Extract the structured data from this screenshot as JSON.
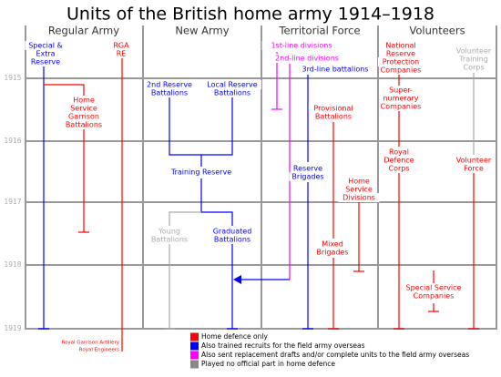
{
  "title": "Units of the British home army 1914–1918",
  "columns": [
    "Regular Army",
    "New Army",
    "Territorial Force",
    "Volunteers"
  ],
  "years": [
    "1915",
    "1916",
    "1917",
    "1918",
    "1919"
  ],
  "nodes": [
    {
      "lines": [
        "Special &",
        "Extra",
        "Reserve"
      ]
    },
    {
      "lines": [
        "RGA",
        "RE"
      ]
    },
    {
      "lines": [
        "Home",
        "Service",
        "Garrison",
        "Battalions"
      ]
    },
    {
      "lines": [
        "2nd Reserve",
        "Battalions"
      ]
    },
    {
      "lines": [
        "Local Reserve",
        "Battalions"
      ]
    },
    {
      "lines": [
        "Training Reserve"
      ]
    },
    {
      "lines": [
        "Young",
        "Battalions"
      ]
    },
    {
      "lines": [
        "Graduated",
        "Battalions"
      ]
    },
    {
      "lines": [
        "1st-line divisions"
      ]
    },
    {
      "lines": [
        "2nd-line divisions"
      ]
    },
    {
      "lines": [
        "3rd-line battalions"
      ]
    },
    {
      "lines": [
        "Provisional",
        "Battalions"
      ]
    },
    {
      "lines": [
        "Reserve",
        "Brigades"
      ]
    },
    {
      "lines": [
        "Home",
        "Service",
        "Divisions"
      ]
    },
    {
      "lines": [
        "Mixed",
        "Brigades"
      ]
    },
    {
      "lines": [
        "National",
        "Reserve",
        "Protection",
        "Companies"
      ]
    },
    {
      "lines": [
        "Volunteer",
        "Training",
        "Corps"
      ]
    },
    {
      "lines": [
        "Super-",
        "numerary",
        "Companies"
      ]
    },
    {
      "lines": [
        "Royal",
        "Defence",
        "Corps"
      ]
    },
    {
      "lines": [
        "Volunteer",
        "Force"
      ]
    },
    {
      "lines": [
        "Special Service",
        "Companies"
      ]
    }
  ],
  "legend": [
    "Home defence only",
    "Also trained recruits for the field army overseas",
    "Also sent replacement drafts and/or complete units to the field army overseas",
    "Played no official part in home defence"
  ],
  "footnote": [
    "Royal Garrison Artillery",
    "Royal Engineers"
  ]
}
